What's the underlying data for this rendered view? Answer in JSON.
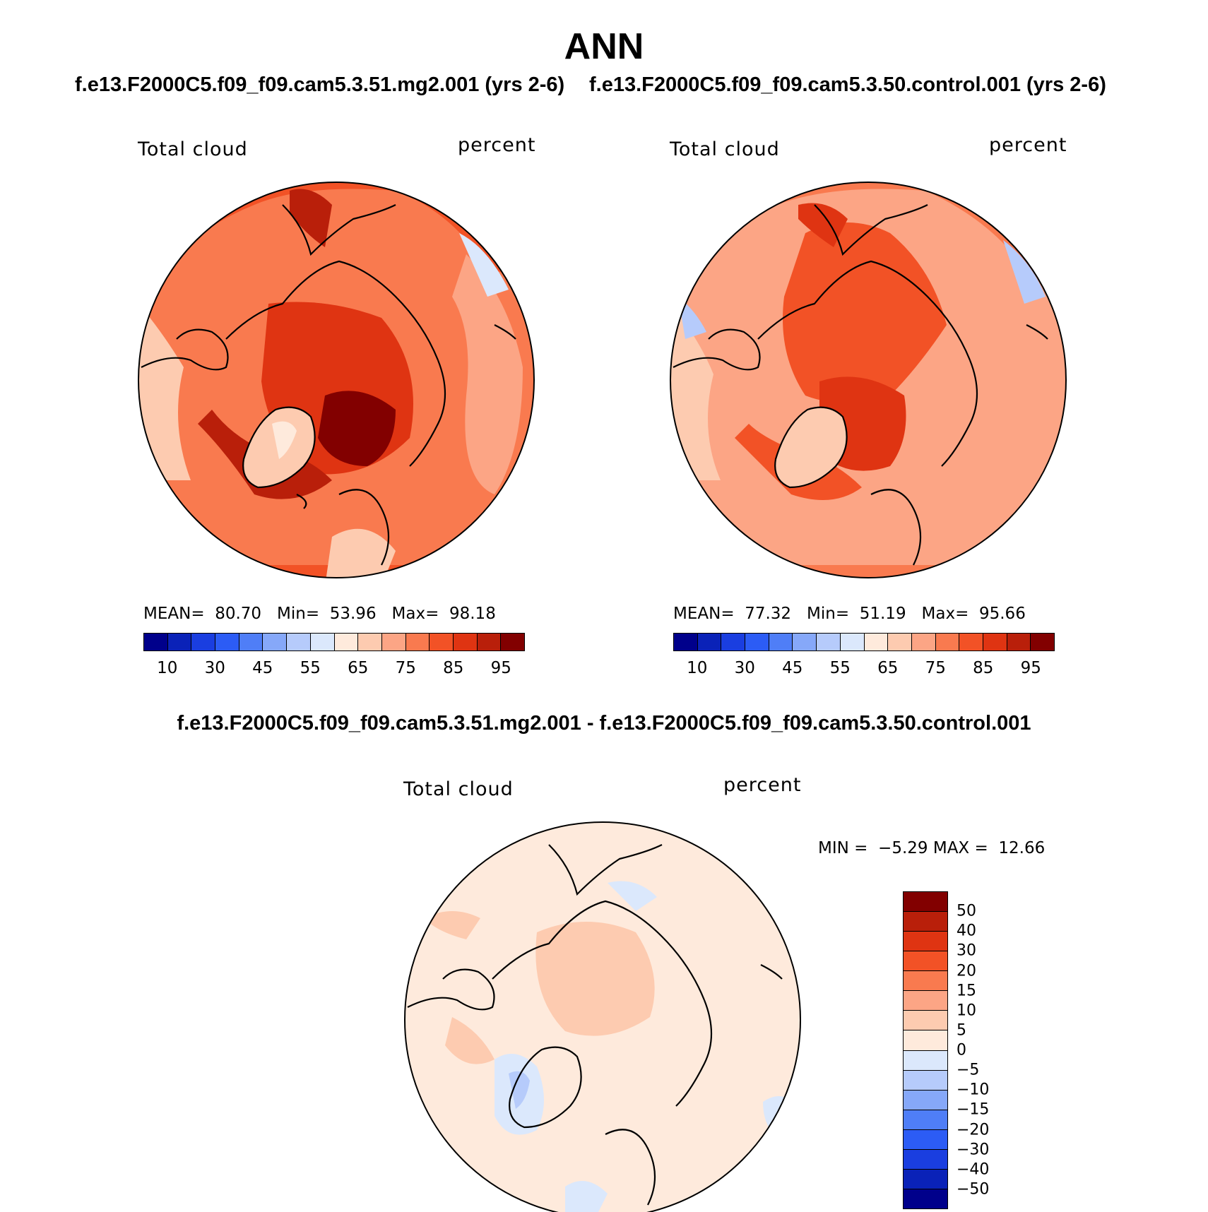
{
  "title": "ANN",
  "case_left": "f.e13.F2000C5.f09_f09.cam5.3.51.mg2.001 (yrs 2-6)",
  "case_right": "f.e13.F2000C5.f09_f09.cam5.3.50.control.001 (yrs 2-6)",
  "diff_title": "f.e13.F2000C5.f09_f09.cam5.3.51.mg2.001 - f.e13.F2000C5.f09_f09.cam5.3.50.control.001",
  "panels": {
    "left": {
      "variable": "Total cloud",
      "units": "percent",
      "mean_label": "MEAN=",
      "mean": "80.70",
      "min_label": "Min=",
      "min": "53.96",
      "max_label": "Max=",
      "max": "98.18"
    },
    "right": {
      "variable": "Total cloud",
      "units": "percent",
      "mean_label": "MEAN=",
      "mean": "77.32",
      "min_label": "Min=",
      "min": "51.19",
      "max_label": "Max=",
      "max": "95.66"
    },
    "diff": {
      "variable": "Total cloud",
      "units": "percent",
      "min_label": "MIN =",
      "min": "−5.29",
      "max_label": "MAX =",
      "max": "12.66"
    }
  },
  "colorbar_abs": {
    "colors": [
      "#00008b",
      "#0a22b8",
      "#1a3ee0",
      "#2c5cf5",
      "#4f7ef7",
      "#86a8f9",
      "#b6cbfb",
      "#dbe8fc",
      "#feeadc",
      "#fdcbb0",
      "#fca585",
      "#f97a4f",
      "#f25226",
      "#df3412",
      "#b91f0a",
      "#820000"
    ],
    "tick_labels": [
      "10",
      "30",
      "45",
      "55",
      "65",
      "75",
      "85",
      "95"
    ]
  },
  "colorbar_diff": {
    "colors": [
      "#820000",
      "#b91f0a",
      "#df3412",
      "#f25226",
      "#f97a4f",
      "#fca585",
      "#fdcbb0",
      "#feeadc",
      "#dbe8fc",
      "#b6cbfb",
      "#86a8f9",
      "#4f7ef7",
      "#2c5cf5",
      "#1a3ee0",
      "#0a22b8",
      "#00008b"
    ],
    "tick_labels": [
      "50",
      "40",
      "30",
      "20",
      "15",
      "10",
      "5",
      "0",
      "−5",
      "−10",
      "−15",
      "−20",
      "−30",
      "−40",
      "−50"
    ]
  }
}
